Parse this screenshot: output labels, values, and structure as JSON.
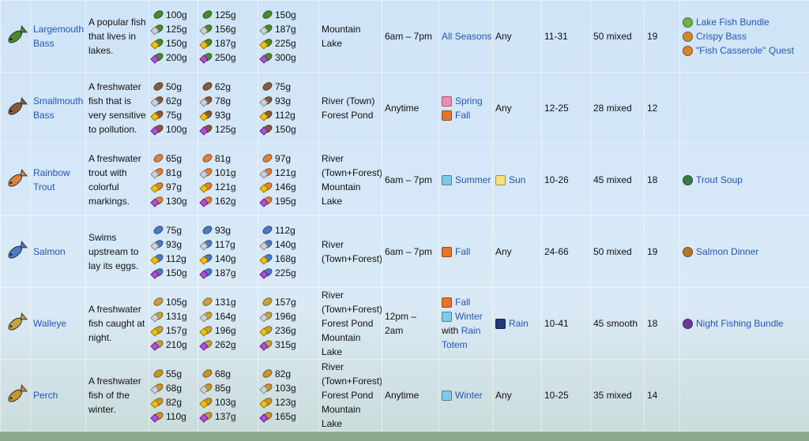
{
  "table": {
    "rows": [
      {
        "name": "Largemouth Bass",
        "color": "#4a8a2a",
        "description": "A popular fish that lives in lakes.",
        "prices": [
          [
            "100g",
            "125g",
            "150g",
            "200g"
          ],
          [
            "125g",
            "156g",
            "187g",
            "250g"
          ],
          [
            "150g",
            "187g",
            "225g",
            "300g"
          ]
        ],
        "location": [
          "Mountain Lake"
        ],
        "time": "6am – 7pm",
        "season": [
          {
            "label": "All Seasons"
          }
        ],
        "weather": {
          "label": "Any"
        },
        "size": "11-31",
        "behavior": "50 mixed",
        "xp": "19",
        "used_in": [
          {
            "label": "Lake Fish Bundle",
            "icon": "#6ab04c"
          },
          {
            "label": "Crispy Bass",
            "icon": "#c98a3a"
          },
          {
            "label": "\"Fish Casserole\" Quest",
            "icon": "#d9822b"
          }
        ]
      },
      {
        "name": "Smallmouth Bass",
        "color": "#8a5a3a",
        "description": "A freshwater fish that is very sensitive to pollution.",
        "prices": [
          [
            "50g",
            "62g",
            "75g",
            "100g"
          ],
          [
            "62g",
            "78g",
            "93g",
            "125g"
          ],
          [
            "75g",
            "93g",
            "112g",
            "150g"
          ]
        ],
        "location": [
          "River (Town)",
          "Forest Pond"
        ],
        "time": "Anytime",
        "season": [
          {
            "label": "Spring",
            "icon": "#f08cb4"
          },
          {
            "label": "Fall",
            "icon": "#e8742a"
          }
        ],
        "weather": {
          "label": "Any"
        },
        "size": "12-25",
        "behavior": "28 mixed",
        "xp": "12",
        "used_in": []
      },
      {
        "name": "Rainbow Trout",
        "color": "#e0803a",
        "description": "A freshwater trout with colorful markings.",
        "prices": [
          [
            "65g",
            "81g",
            "97g",
            "130g"
          ],
          [
            "81g",
            "101g",
            "121g",
            "162g"
          ],
          [
            "97g",
            "121g",
            "146g",
            "195g"
          ]
        ],
        "location": [
          "River (Town+Forest)",
          "Mountain Lake"
        ],
        "time": "6am – 7pm",
        "season": [
          {
            "label": "Summer",
            "icon": "#7fc8e8"
          }
        ],
        "weather": {
          "label": "Sun",
          "icon": "#f4e27a"
        },
        "size": "10-26",
        "behavior": "45 mixed",
        "xp": "18",
        "used_in": [
          {
            "label": "Trout Soup",
            "icon": "#3a7a4a"
          }
        ]
      },
      {
        "name": "Salmon",
        "color": "#4a7ac8",
        "description": "Swims upstream to lay its eggs.",
        "prices": [
          [
            "75g",
            "93g",
            "112g",
            "150g"
          ],
          [
            "93g",
            "117g",
            "140g",
            "187g"
          ],
          [
            "112g",
            "140g",
            "168g",
            "225g"
          ]
        ],
        "location": [
          "River (Town+Forest)"
        ],
        "time": "6am – 7pm",
        "season": [
          {
            "label": "Fall",
            "icon": "#e8742a"
          }
        ],
        "weather": {
          "label": "Any"
        },
        "size": "24-66",
        "behavior": "50 mixed",
        "xp": "19",
        "used_in": [
          {
            "label": "Salmon Dinner",
            "icon": "#b8742a"
          }
        ]
      },
      {
        "name": "Walleye",
        "color": "#c8a23a",
        "description": "A freshwater fish caught at night.",
        "prices": [
          [
            "105g",
            "131g",
            "157g",
            "210g"
          ],
          [
            "131g",
            "164g",
            "196g",
            "262g"
          ],
          [
            "157g",
            "196g",
            "236g",
            "315g"
          ]
        ],
        "location": [
          "River (Town+Forest)",
          "Forest Pond",
          "Mountain Lake"
        ],
        "time": "12pm – 2am",
        "season": [
          {
            "label": "Fall",
            "icon": "#e8742a"
          },
          {
            "label": "Winter",
            "icon": "#7fc8e8"
          },
          {
            "prefix": "with",
            "label": "Rain Totem"
          }
        ],
        "weather": {
          "label": "Rain",
          "icon": "#1e3a7a"
        },
        "size": "10-41",
        "behavior": "45 smooth",
        "xp": "18",
        "used_in": [
          {
            "label": "Night Fishing Bundle",
            "icon": "#6a3a9a"
          }
        ]
      },
      {
        "name": "Perch",
        "color": "#c8962a",
        "description": "A freshwater fish of the winter.",
        "prices": [
          [
            "55g",
            "68g",
            "82g",
            "110g"
          ],
          [
            "68g",
            "85g",
            "103g",
            "137g"
          ],
          [
            "82g",
            "103g",
            "123g",
            "165g"
          ]
        ],
        "location": [
          "River (Town+Forest)",
          "Forest Pond",
          "Mountain Lake"
        ],
        "time": "Anytime",
        "season": [
          {
            "label": "Winter",
            "icon": "#7fc8e8"
          }
        ],
        "weather": {
          "label": "Any"
        },
        "size": "10-25",
        "behavior": "35 mixed",
        "xp": "14",
        "used_in": []
      }
    ]
  }
}
